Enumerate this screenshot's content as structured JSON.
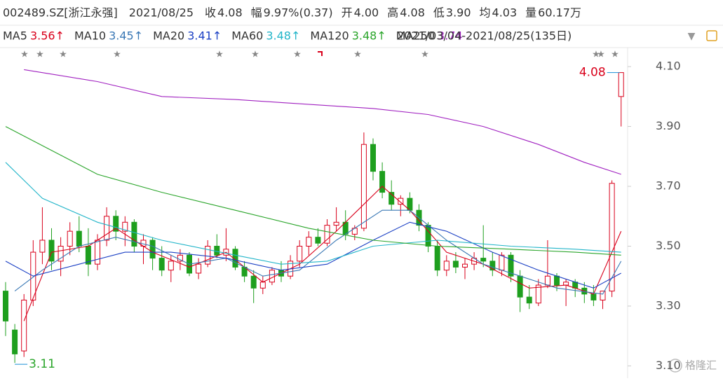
{
  "chart_data": {
    "type": "candlestick",
    "header": [
      {
        "label": "002489.SZ[浙江永强]",
        "value": null
      },
      {
        "label": "2021/08/25",
        "value": null
      },
      {
        "label": "收",
        "value": "4.08"
      },
      {
        "label": "幅",
        "value": "9.97%(0.37)"
      },
      {
        "label": "开",
        "value": "4.00"
      },
      {
        "label": "高",
        "value": "4.08"
      },
      {
        "label": "低",
        "value": "3.90"
      },
      {
        "label": "均",
        "value": "4.03"
      },
      {
        "label": "量",
        "value": "60.17万"
      }
    ],
    "range_label": "2021/03/04-2021/08/25(135日)",
    "up_color": "#d9001b",
    "down_color": "#1e9f1e",
    "ylim": [
      3.08,
      4.14
    ],
    "yticks": [
      {
        "value": 4.1,
        "label": "4.10"
      },
      {
        "value": 3.9,
        "label": "3.90"
      },
      {
        "value": 3.7,
        "label": "3.70"
      },
      {
        "value": 3.5,
        "label": "3.50"
      },
      {
        "value": 3.3,
        "label": "3.30"
      },
      {
        "value": 3.1,
        "label": "3.10"
      }
    ],
    "grid": false,
    "ohlc": [
      [
        3.35,
        3.38,
        3.2,
        3.25
      ],
      [
        3.22,
        3.24,
        3.11,
        3.14
      ],
      [
        3.15,
        3.34,
        3.13,
        3.32
      ],
      [
        3.32,
        3.52,
        3.3,
        3.48
      ],
      [
        3.48,
        3.63,
        3.44,
        3.52
      ],
      [
        3.52,
        3.56,
        3.42,
        3.45
      ],
      [
        3.45,
        3.53,
        3.4,
        3.5
      ],
      [
        3.5,
        3.58,
        3.47,
        3.55
      ],
      [
        3.55,
        3.6,
        3.48,
        3.5
      ],
      [
        3.5,
        3.56,
        3.4,
        3.44
      ],
      [
        3.44,
        3.54,
        3.42,
        3.52
      ],
      [
        3.52,
        3.63,
        3.5,
        3.6
      ],
      [
        3.6,
        3.62,
        3.52,
        3.55
      ],
      [
        3.55,
        3.6,
        3.5,
        3.58
      ],
      [
        3.58,
        3.59,
        3.48,
        3.5
      ],
      [
        3.5,
        3.54,
        3.44,
        3.52
      ],
      [
        3.52,
        3.53,
        3.42,
        3.46
      ],
      [
        3.46,
        3.5,
        3.4,
        3.42
      ],
      [
        3.42,
        3.47,
        3.38,
        3.45
      ],
      [
        3.45,
        3.49,
        3.42,
        3.47
      ],
      [
        3.47,
        3.48,
        3.4,
        3.41
      ],
      [
        3.41,
        3.46,
        3.39,
        3.44
      ],
      [
        3.44,
        3.52,
        3.43,
        3.5
      ],
      [
        3.5,
        3.54,
        3.46,
        3.47
      ],
      [
        3.47,
        3.56,
        3.45,
        3.49
      ],
      [
        3.49,
        3.5,
        3.42,
        3.43
      ],
      [
        3.43,
        3.45,
        3.38,
        3.4
      ],
      [
        3.4,
        3.42,
        3.31,
        3.36
      ],
      [
        3.36,
        3.4,
        3.34,
        3.38
      ],
      [
        3.38,
        3.43,
        3.37,
        3.42
      ],
      [
        3.42,
        3.45,
        3.38,
        3.4
      ],
      [
        3.4,
        3.47,
        3.39,
        3.45
      ],
      [
        3.45,
        3.52,
        3.43,
        3.5
      ],
      [
        3.5,
        3.55,
        3.47,
        3.53
      ],
      [
        3.53,
        3.56,
        3.5,
        3.51
      ],
      [
        3.51,
        3.59,
        3.5,
        3.57
      ],
      [
        3.57,
        3.63,
        3.55,
        3.58
      ],
      [
        3.58,
        3.62,
        3.52,
        3.54
      ],
      [
        3.54,
        3.57,
        3.52,
        3.56
      ],
      [
        3.56,
        3.88,
        3.55,
        3.84
      ],
      [
        3.84,
        3.86,
        3.72,
        3.75
      ],
      [
        3.75,
        3.78,
        3.66,
        3.68
      ],
      [
        3.68,
        3.72,
        3.62,
        3.64
      ],
      [
        3.64,
        3.67,
        3.6,
        3.66
      ],
      [
        3.66,
        3.68,
        3.61,
        3.62
      ],
      [
        3.62,
        3.64,
        3.55,
        3.57
      ],
      [
        3.57,
        3.58,
        3.48,
        3.5
      ],
      [
        3.5,
        3.52,
        3.4,
        3.42
      ],
      [
        3.42,
        3.47,
        3.4,
        3.45
      ],
      [
        3.45,
        3.48,
        3.41,
        3.43
      ],
      [
        3.43,
        3.46,
        3.39,
        3.44
      ],
      [
        3.44,
        3.48,
        3.42,
        3.46
      ],
      [
        3.46,
        3.57,
        3.43,
        3.45
      ],
      [
        3.45,
        3.48,
        3.4,
        3.42
      ],
      [
        3.42,
        3.48,
        3.4,
        3.47
      ],
      [
        3.47,
        3.48,
        3.38,
        3.4
      ],
      [
        3.4,
        3.42,
        3.28,
        3.33
      ],
      [
        3.33,
        3.37,
        3.29,
        3.31
      ],
      [
        3.31,
        3.39,
        3.3,
        3.37
      ],
      [
        3.37,
        3.52,
        3.36,
        3.4
      ],
      [
        3.4,
        3.41,
        3.35,
        3.37
      ],
      [
        3.37,
        3.39,
        3.3,
        3.38
      ],
      [
        3.38,
        3.39,
        3.33,
        3.36
      ],
      [
        3.36,
        3.38,
        3.31,
        3.34
      ],
      [
        3.34,
        3.37,
        3.3,
        3.32
      ],
      [
        3.32,
        3.35,
        3.29,
        3.35
      ],
      [
        3.35,
        3.72,
        3.33,
        3.71
      ],
      [
        4.0,
        4.08,
        3.9,
        4.08
      ]
    ],
    "series": [
      {
        "name": "MA5",
        "color": "#d9001b",
        "legend_value": {
          "value": 3.56,
          "label": "3.56↑"
        },
        "x": [
          2,
          5,
          9,
          12,
          16,
          20,
          24,
          28,
          32,
          36,
          41,
          44,
          48,
          52,
          57,
          61,
          64,
          67
        ],
        "values": [
          3.25,
          3.48,
          3.5,
          3.56,
          3.48,
          3.43,
          3.48,
          3.38,
          3.44,
          3.55,
          3.7,
          3.62,
          3.48,
          3.44,
          3.36,
          3.37,
          3.34,
          3.55
        ]
      },
      {
        "name": "MA10",
        "color": "#3a78b5",
        "legend_value": {
          "value": 3.45,
          "label": "3.45↑"
        },
        "x": [
          1,
          4,
          8,
          12,
          16,
          20,
          24,
          28,
          32,
          36,
          41,
          44,
          48,
          52,
          56,
          60,
          65,
          67
        ],
        "values": [
          3.35,
          3.42,
          3.5,
          3.53,
          3.5,
          3.44,
          3.46,
          3.4,
          3.42,
          3.52,
          3.62,
          3.62,
          3.52,
          3.44,
          3.4,
          3.36,
          3.34,
          3.45
        ]
      },
      {
        "name": "MA20",
        "color": "#1a3fc4",
        "legend_value": {
          "value": 3.41,
          "label": "3.41↑"
        },
        "x": [
          0,
          3,
          8,
          13,
          18,
          24,
          30,
          35,
          40,
          44,
          48,
          53,
          58,
          64,
          67
        ],
        "values": [
          3.45,
          3.4,
          3.44,
          3.48,
          3.48,
          3.46,
          3.42,
          3.44,
          3.52,
          3.58,
          3.55,
          3.48,
          3.42,
          3.36,
          3.41
        ]
      },
      {
        "name": "MA60",
        "color": "#22b5c9",
        "legend_value": {
          "value": 3.48,
          "label": "3.48↑"
        },
        "x": [
          0,
          4,
          10,
          17,
          25,
          30,
          35,
          40,
          47,
          55,
          62,
          67
        ],
        "values": [
          3.78,
          3.66,
          3.58,
          3.52,
          3.47,
          3.44,
          3.45,
          3.5,
          3.52,
          3.5,
          3.49,
          3.48
        ]
      },
      {
        "name": "MA120",
        "color": "#2aa52a",
        "legend_value": {
          "value": 3.48,
          "label": "3.48↑"
        },
        "x": [
          0,
          5,
          10,
          17,
          25,
          33,
          40,
          47,
          55,
          62,
          67
        ],
        "values": [
          3.9,
          3.82,
          3.74,
          3.68,
          3.62,
          3.56,
          3.52,
          3.5,
          3.49,
          3.48,
          3.47
        ]
      },
      {
        "name": "MA250",
        "color": "#a020c0",
        "legend_value": {
          "value": 3.74,
          "label": "3.74"
        },
        "x": [
          2,
          10,
          17,
          25,
          30,
          40,
          46,
          52,
          58,
          63,
          67
        ],
        "values": [
          4.09,
          4.05,
          4.0,
          3.99,
          3.98,
          3.96,
          3.94,
          3.9,
          3.84,
          3.78,
          3.74
        ]
      }
    ],
    "annotations": [
      {
        "label": "4.08",
        "value": 4.08,
        "index": 67
      },
      {
        "label": "3.11",
        "value": 3.11,
        "index": 1
      }
    ],
    "watermark": "格隆汇"
  }
}
